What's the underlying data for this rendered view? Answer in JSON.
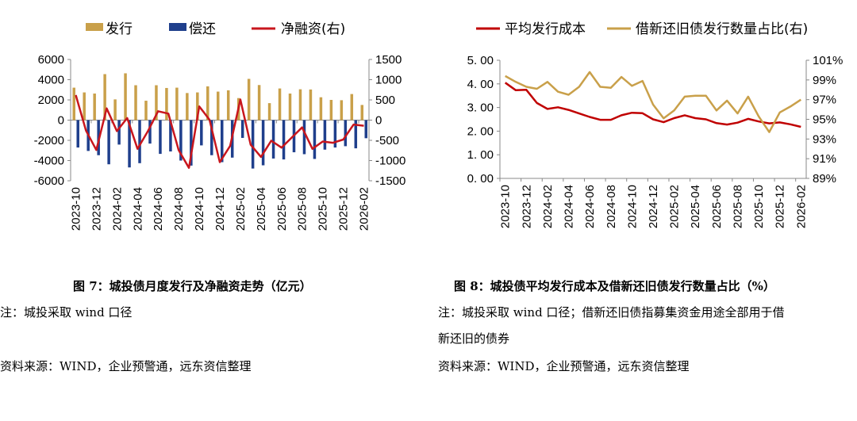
{
  "chart_data": [
    {
      "type": "bar",
      "title": "图 7：城投债月度发行及净融资走势（亿元）",
      "categories": [
        "2023-10",
        "2023-11",
        "2023-12",
        "2024-01",
        "2024-02",
        "2024-03",
        "2024-04",
        "2024-05",
        "2024-06",
        "2024-07",
        "2024-08",
        "2024-09",
        "2024-10",
        "2024-11",
        "2024-12",
        "2025-01",
        "2025-02",
        "2025-03",
        "2025-04",
        "2025-05",
        "2025-06",
        "2025-07",
        "2025-08",
        "2025-09",
        "2025-10",
        "2025-11",
        "2025-12",
        "2026-01",
        "2026-02"
      ],
      "tick_labels": [
        "2023-10",
        "2023-12",
        "2024-02",
        "2024-04",
        "2024-06",
        "2024-08",
        "2024-10",
        "2024-12",
        "2025-02",
        "2025-04",
        "2025-06",
        "2025-08",
        "2025-10",
        "2025-12",
        "2026-02"
      ],
      "series": [
        {
          "name": "发行",
          "kind": "bar",
          "axis": "left",
          "color": "#C9A04A",
          "values": [
            3210,
            2740,
            2630,
            4550,
            2050,
            4630,
            3450,
            1920,
            3450,
            3180,
            3210,
            2680,
            2740,
            3340,
            2820,
            2950,
            2180,
            4080,
            3470,
            1680,
            3130,
            2630,
            3050,
            3030,
            2260,
            2000,
            1970,
            2580,
            1500
          ]
        },
        {
          "name": "偿还",
          "kind": "bar",
          "axis": "left",
          "color": "#1F3F8C",
          "values": [
            -2710,
            -3050,
            -3470,
            -4370,
            -2420,
            -4680,
            -4260,
            -2320,
            -3340,
            -3100,
            -4000,
            -4500,
            -2500,
            -3470,
            -4160,
            -3710,
            -1760,
            -4790,
            -4470,
            -3800,
            -3890,
            -3180,
            -3370,
            -3840,
            -2920,
            -2710,
            -2580,
            -2790,
            -1790
          ]
        },
        {
          "name": "净融资(右)",
          "kind": "line",
          "axis": "right",
          "color": "#C8161D",
          "values": [
            620,
            -260,
            -740,
            290,
            -270,
            50,
            -710,
            -280,
            220,
            160,
            -740,
            -1180,
            340,
            10,
            -1040,
            -640,
            510,
            -610,
            -910,
            -510,
            -680,
            -430,
            -180,
            -710,
            -530,
            -560,
            -480,
            -110,
            -140
          ]
        }
      ],
      "ylim_left": [
        -6000,
        6000
      ],
      "yticks_left": [
        "6000",
        "4000",
        "2000",
        "0",
        "-2000",
        "-4000",
        "-6000"
      ],
      "ylim_right": [
        -1500,
        1500
      ],
      "yticks_right": [
        "1500",
        "1000",
        "500",
        "0",
        "-500",
        "-1000",
        "-1500"
      ],
      "legend": "top",
      "grid": false
    },
    {
      "type": "line",
      "title": "图 8：城投债平均发行成本及借新还旧债发行数量占比（%）",
      "categories": [
        "2023-10",
        "2023-11",
        "2023-12",
        "2024-01",
        "2024-02",
        "2024-03",
        "2024-04",
        "2024-05",
        "2024-06",
        "2024-07",
        "2024-08",
        "2024-09",
        "2024-10",
        "2024-11",
        "2024-12",
        "2025-01",
        "2025-02",
        "2025-03",
        "2025-04",
        "2025-05",
        "2025-06",
        "2025-07",
        "2025-08",
        "2025-09",
        "2025-10",
        "2025-11",
        "2025-12",
        "2026-01",
        "2026-02"
      ],
      "tick_labels": [
        "2023-10",
        "2023-12",
        "2024-02",
        "2024-04",
        "2024-06",
        "2024-08",
        "2024-10",
        "2024-12",
        "2025-02",
        "2025-04",
        "2025-06",
        "2025-08",
        "2025-10",
        "2025-12",
        "2026-02"
      ],
      "series": [
        {
          "name": "平均发行成本",
          "axis": "left",
          "color": "#C00000",
          "values": [
            4.05,
            3.73,
            3.75,
            3.19,
            2.94,
            3.01,
            2.9,
            2.75,
            2.6,
            2.48,
            2.48,
            2.67,
            2.78,
            2.76,
            2.5,
            2.38,
            2.55,
            2.67,
            2.55,
            2.5,
            2.34,
            2.28,
            2.36,
            2.52,
            2.41,
            2.33,
            2.37,
            2.29,
            2.18
          ]
        },
        {
          "name": "借新还旧债发行数量占比(右)",
          "axis": "right",
          "color": "#C9A04A",
          "values": [
            99.4,
            98.8,
            98.3,
            98.1,
            98.8,
            97.8,
            97.5,
            98.3,
            99.8,
            98.3,
            98.2,
            99.3,
            98.4,
            98.9,
            96.5,
            95.1,
            95.9,
            97.3,
            97.4,
            97.4,
            95.9,
            96.9,
            95.6,
            97.3,
            95.3,
            93.7,
            95.7,
            96.3,
            97.0
          ]
        }
      ],
      "ylim_left": [
        0,
        5
      ],
      "yticks_left": [
        "5. 00",
        "4. 00",
        "3. 00",
        "2. 00",
        "1. 00",
        "0. 00"
      ],
      "ylim_right": [
        89,
        101
      ],
      "yticks_right": [
        "101%",
        "99%",
        "97%",
        "95%",
        "93%",
        "91%",
        "89%"
      ],
      "legend": "top",
      "grid": false
    }
  ],
  "left_notes": {
    "note": "注：城投采取 wind 口径",
    "source": "资料来源：WIND，企业预警通，远东资信整理"
  },
  "right_notes": {
    "note_line1": "注：城投采取 wind 口径；借新还旧债指募集资金用途全部用于借",
    "note_line2": "新还旧的债券",
    "source": "资料来源：WIND，企业预警通，远东资信整理"
  }
}
